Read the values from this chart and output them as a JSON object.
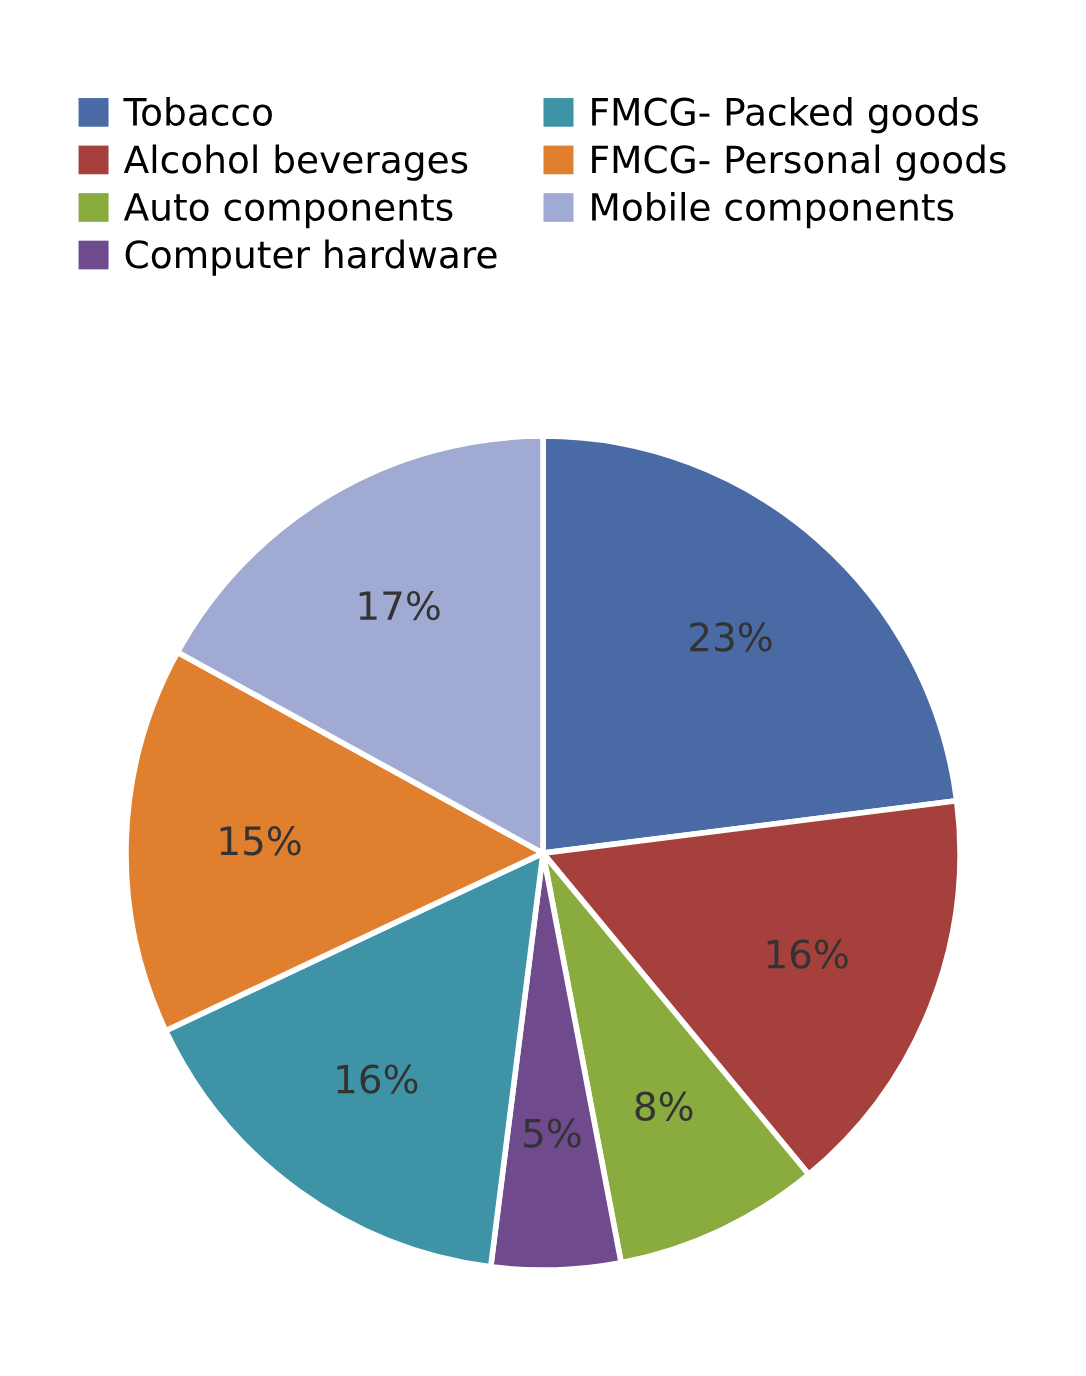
{
  "chart_data": {
    "type": "pie",
    "categories": [
      "Tobacco",
      "Alcohol beverages",
      "Auto components",
      "Computer hardware",
      "FMCG- Packed goods",
      "FMCG- Personal goods",
      "Mobile components"
    ],
    "values": [
      23,
      16,
      8,
      5,
      16,
      15,
      17
    ],
    "colors": [
      "#4a6aa5",
      "#a5403c",
      "#8aac3f",
      "#6f4a8c",
      "#3e94a6",
      "#e07f2e",
      "#a0aad2"
    ],
    "value_labels": [
      "23%",
      "16%",
      "8%",
      "5%",
      "16%",
      "15%",
      "17%"
    ],
    "legend": "top"
  }
}
